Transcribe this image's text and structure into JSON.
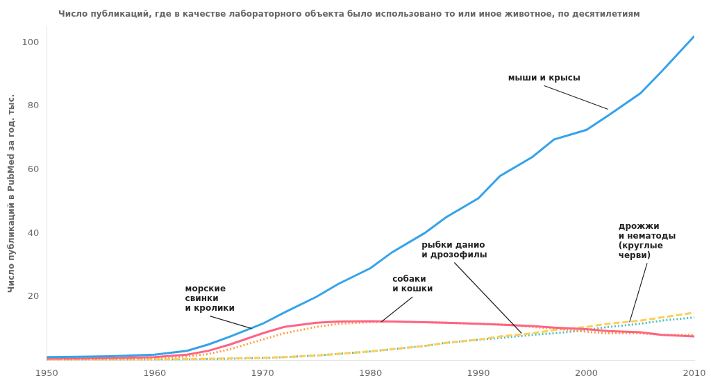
{
  "chart_data": {
    "type": "line",
    "title": "Число публикаций, где в качестве лабораторного объекта было использовано то или иное животное, по десятилетиям",
    "ylabel": "Число публикаций в PubMed за год. тыс.",
    "x": [
      1950,
      1953,
      1956,
      1960,
      1963,
      1965,
      1967,
      1970,
      1972,
      1975,
      1977,
      1980,
      1982,
      1985,
      1987,
      1990,
      1992,
      1995,
      1997,
      2000,
      2002,
      2005,
      2007,
      2010
    ],
    "series": [
      {
        "values": [
          1.0,
          1.1,
          1.3,
          1.8,
          3.0,
          5.0,
          7.5,
          11.5,
          15.0,
          20.0,
          24.0,
          29.0,
          34.0,
          40.0,
          45.0,
          51.0,
          58.0,
          64.0,
          69.5,
          72.5,
          77.0,
          84.0,
          91.0,
          102.0
        ],
        "line_style": "solid"
      },
      {
        "values": [
          0.5,
          0.6,
          0.7,
          1.0,
          1.8,
          3.0,
          5.0,
          8.5,
          10.5,
          11.8,
          12.2,
          12.3,
          12.2,
          12.0,
          11.8,
          11.5,
          11.2,
          10.8,
          10.3,
          9.8,
          9.2,
          8.8,
          8.0,
          7.5
        ],
        "line_style": "solid"
      },
      {
        "values": [
          0.3,
          0.4,
          0.5,
          0.7,
          1.2,
          2.0,
          3.5,
          6.5,
          8.5,
          10.5,
          11.5,
          12.0,
          12.2,
          12.0,
          11.8,
          11.5,
          11.3,
          10.5,
          10.0,
          9.0,
          8.5,
          8.5,
          8.0,
          8.0
        ],
        "line_style": "dotted"
      },
      {
        "values": [
          0.1,
          0.15,
          0.2,
          0.3,
          0.4,
          0.5,
          0.6,
          0.8,
          1.0,
          1.5,
          2.0,
          2.8,
          3.5,
          4.5,
          5.5,
          6.5,
          7.5,
          8.5,
          9.5,
          10.5,
          11.5,
          12.5,
          13.5,
          15.0
        ],
        "line_style": "dashed"
      },
      {
        "values": [
          0.05,
          0.08,
          0.1,
          0.2,
          0.3,
          0.4,
          0.5,
          0.7,
          1.0,
          1.5,
          2.0,
          2.8,
          3.5,
          4.5,
          5.5,
          6.5,
          7.0,
          8.0,
          8.5,
          9.5,
          10.5,
          11.5,
          12.5,
          13.5
        ],
        "line_style": "dotted"
      }
    ],
    "xlim": [
      1950,
      2010
    ],
    "ylim": [
      0,
      105
    ],
    "xticks": [
      1950,
      1960,
      1970,
      1980,
      1990,
      2000,
      2010
    ],
    "yticks": [
      20,
      40,
      60,
      80,
      100
    ],
    "grid": false,
    "annotations": [
      {
        "text": "мыши и крысы",
        "x": 2002,
        "y": 79
      },
      {
        "text": "морские\nсвинки\nи кролики",
        "x": 1969,
        "y": 10.0
      },
      {
        "text": "собаки\nи кошки",
        "x": 1981,
        "y": 12.1
      },
      {
        "text": "рыбки данио\nи дрозофилы",
        "x": 1994,
        "y": 8.5
      },
      {
        "text": "дрожжи\nи нематоды\n(круглые\nчерви)",
        "x": 2004,
        "y": 12.0
      }
    ]
  }
}
